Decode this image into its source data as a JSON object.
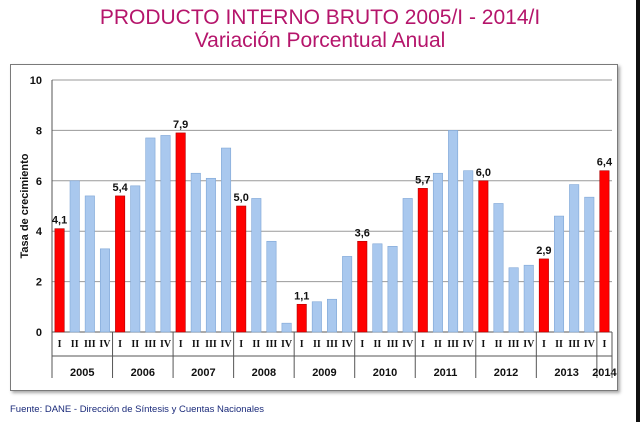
{
  "title": "PRODUCTO INTERNO BRUTO 2005/I - 2014/I",
  "subtitle": "Variación Porcentual Anual",
  "source": "Fuente: DANE - Dirección de Síntesis y Cuentas Nacionales",
  "colors": {
    "highlight": "#ff0000",
    "normal": "#a9c8ee",
    "title": "#b5156b"
  },
  "chart_data": {
    "type": "bar",
    "ylabel": "Tasa de crecimiento",
    "ylim": [
      0,
      10
    ],
    "yticks": [
      "0",
      "2",
      "4",
      "6",
      "8",
      "10"
    ],
    "grid": true,
    "quarter_labels": [
      "I",
      "II",
      "III",
      "IV"
    ],
    "years": [
      "2005",
      "2006",
      "2007",
      "2008",
      "2009",
      "2010",
      "2011",
      "2012",
      "2013",
      "2014"
    ],
    "values": [
      4.1,
      6.0,
      5.4,
      3.3,
      5.4,
      5.8,
      7.7,
      7.8,
      7.9,
      6.3,
      6.1,
      7.3,
      5.0,
      5.3,
      3.6,
      0.35,
      1.1,
      1.2,
      1.3,
      3.0,
      3.6,
      3.5,
      3.4,
      5.3,
      5.7,
      6.3,
      8.0,
      6.4,
      6.0,
      5.1,
      2.55,
      2.65,
      2.9,
      4.6,
      5.85,
      5.35,
      6.4
    ],
    "data_labels": [
      "4,1",
      "5,4",
      "7,9",
      "5,0",
      "1,1",
      "3,6",
      "5,7",
      "6,0",
      "2,9",
      "6,4"
    ],
    "highlighted": [
      true,
      false,
      false,
      false,
      true,
      false,
      false,
      false,
      true,
      false,
      false,
      false,
      true,
      false,
      false,
      false,
      true,
      false,
      false,
      false,
      true,
      false,
      false,
      false,
      true,
      false,
      false,
      false,
      true,
      false,
      false,
      false,
      true,
      false,
      false,
      false,
      true
    ]
  }
}
